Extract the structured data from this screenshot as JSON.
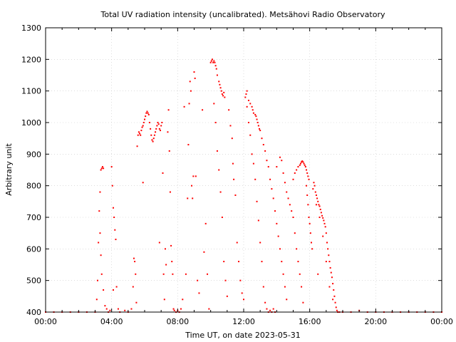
{
  "chart_data": {
    "type": "scatter",
    "title": "Total UV radiation intensity (uncalibrated). Metsähovi Radio Observatory",
    "xlabel": "Time UT, on date 2023-05-31",
    "ylabel": "Arbitrary unit",
    "xlim": [
      0,
      24
    ],
    "ylim": [
      400,
      1300
    ],
    "x_ticks": [
      {
        "value": 0,
        "label": "00:00"
      },
      {
        "value": 4,
        "label": "04:00"
      },
      {
        "value": 8,
        "label": "08:00"
      },
      {
        "value": 12,
        "label": "12:00"
      },
      {
        "value": 16,
        "label": "16:00"
      },
      {
        "value": 20,
        "label": "20:00"
      },
      {
        "value": 24,
        "label": "00:00"
      }
    ],
    "y_ticks": [
      400,
      500,
      600,
      700,
      800,
      900,
      1000,
      1100,
      1200,
      1300
    ],
    "grid": true,
    "marker_color": "#ff0000",
    "series": [
      {
        "points": [
          [
            0.0,
            400
          ],
          [
            0.5,
            400
          ],
          [
            1.0,
            400
          ],
          [
            1.5,
            400
          ],
          [
            2.0,
            400
          ],
          [
            2.5,
            400
          ],
          [
            3.0,
            400
          ],
          [
            3.1,
            440
          ],
          [
            3.15,
            500
          ],
          [
            3.2,
            620
          ],
          [
            3.25,
            720
          ],
          [
            3.3,
            780
          ],
          [
            3.35,
            850
          ],
          [
            3.4,
            855
          ],
          [
            3.45,
            860
          ],
          [
            3.5,
            855
          ],
          [
            3.3,
            650
          ],
          [
            3.35,
            580
          ],
          [
            3.4,
            520
          ],
          [
            3.5,
            470
          ],
          [
            3.6,
            420
          ],
          [
            3.7,
            410
          ],
          [
            3.8,
            400
          ],
          [
            3.9,
            405
          ],
          [
            4.0,
            860
          ],
          [
            4.05,
            800
          ],
          [
            4.1,
            730
          ],
          [
            4.15,
            700
          ],
          [
            4.2,
            660
          ],
          [
            4.25,
            630
          ],
          [
            4.3,
            480
          ],
          [
            4.1,
            470
          ],
          [
            4.4,
            410
          ],
          [
            4.5,
            400
          ],
          [
            4.8,
            405
          ],
          [
            5.0,
            400
          ],
          [
            5.2,
            410
          ],
          [
            5.3,
            480
          ],
          [
            5.35,
            570
          ],
          [
            5.4,
            560
          ],
          [
            5.45,
            520
          ],
          [
            5.5,
            430
          ],
          [
            5.55,
            925
          ],
          [
            5.6,
            960
          ],
          [
            5.65,
            970
          ],
          [
            5.7,
            965
          ],
          [
            5.75,
            960
          ],
          [
            5.8,
            975
          ],
          [
            5.85,
            985
          ],
          [
            5.9,
            990
          ],
          [
            5.95,
            1000
          ],
          [
            6.0,
            1010
          ],
          [
            6.05,
            1020
          ],
          [
            6.1,
            1030
          ],
          [
            6.15,
            1035
          ],
          [
            6.2,
            1030
          ],
          [
            6.25,
            1025
          ],
          [
            6.3,
            1000
          ],
          [
            6.35,
            980
          ],
          [
            6.4,
            960
          ],
          [
            6.45,
            945
          ],
          [
            6.5,
            940
          ],
          [
            6.55,
            950
          ],
          [
            6.6,
            960
          ],
          [
            6.65,
            970
          ],
          [
            6.7,
            980
          ],
          [
            6.75,
            990
          ],
          [
            6.8,
            1000
          ],
          [
            6.85,
            995
          ],
          [
            6.9,
            980
          ],
          [
            6.95,
            975
          ],
          [
            7.0,
            990
          ],
          [
            7.05,
            1000
          ],
          [
            5.9,
            810
          ],
          [
            6.9,
            620
          ],
          [
            7.1,
            840
          ],
          [
            7.15,
            520
          ],
          [
            7.2,
            440
          ],
          [
            7.25,
            600
          ],
          [
            7.3,
            550
          ],
          [
            7.4,
            970
          ],
          [
            7.45,
            1040
          ],
          [
            7.5,
            910
          ],
          [
            7.55,
            780
          ],
          [
            7.6,
            610
          ],
          [
            7.65,
            560
          ],
          [
            7.7,
            520
          ],
          [
            7.75,
            410
          ],
          [
            7.8,
            405
          ],
          [
            7.9,
            400
          ],
          [
            8.0,
            405
          ],
          [
            8.1,
            400
          ],
          [
            8.2,
            410
          ],
          [
            8.3,
            440
          ],
          [
            8.4,
            1050
          ],
          [
            8.5,
            520
          ],
          [
            8.6,
            760
          ],
          [
            8.65,
            930
          ],
          [
            8.7,
            1060
          ],
          [
            8.75,
            1130
          ],
          [
            8.8,
            1100
          ],
          [
            8.85,
            800
          ],
          [
            8.9,
            760
          ],
          [
            8.95,
            830
          ],
          [
            9.0,
            1160
          ],
          [
            9.05,
            1140
          ],
          [
            9.1,
            830
          ],
          [
            9.2,
            500
          ],
          [
            9.3,
            460
          ],
          [
            9.5,
            1040
          ],
          [
            9.6,
            590
          ],
          [
            9.7,
            680
          ],
          [
            9.8,
            520
          ],
          [
            9.9,
            410
          ],
          [
            10.0,
            1190
          ],
          [
            10.05,
            1195
          ],
          [
            10.1,
            1200
          ],
          [
            10.15,
            1190
          ],
          [
            10.2,
            1195
          ],
          [
            10.25,
            1190
          ],
          [
            10.3,
            1180
          ],
          [
            10.35,
            1170
          ],
          [
            10.4,
            1150
          ],
          [
            10.5,
            1130
          ],
          [
            10.55,
            1120
          ],
          [
            10.6,
            1110
          ],
          [
            10.65,
            1100
          ],
          [
            10.7,
            1090
          ],
          [
            10.75,
            1085
          ],
          [
            10.8,
            1095
          ],
          [
            10.85,
            1080
          ],
          [
            10.2,
            1060
          ],
          [
            10.3,
            1000
          ],
          [
            10.4,
            910
          ],
          [
            10.5,
            850
          ],
          [
            10.6,
            780
          ],
          [
            10.7,
            700
          ],
          [
            10.8,
            560
          ],
          [
            10.9,
            500
          ],
          [
            11.0,
            450
          ],
          [
            11.1,
            1040
          ],
          [
            11.2,
            990
          ],
          [
            11.3,
            950
          ],
          [
            11.35,
            870
          ],
          [
            11.4,
            820
          ],
          [
            11.5,
            770
          ],
          [
            11.6,
            620
          ],
          [
            11.7,
            560
          ],
          [
            11.8,
            500
          ],
          [
            11.9,
            460
          ],
          [
            12.0,
            440
          ],
          [
            12.1,
            1080
          ],
          [
            12.15,
            1090
          ],
          [
            12.2,
            1100
          ],
          [
            12.3,
            1070
          ],
          [
            12.4,
            1060
          ],
          [
            12.5,
            1050
          ],
          [
            12.55,
            1040
          ],
          [
            12.6,
            1030
          ],
          [
            12.7,
            1025
          ],
          [
            12.75,
            1020
          ],
          [
            12.8,
            1010
          ],
          [
            12.85,
            1000
          ],
          [
            12.9,
            990
          ],
          [
            12.95,
            980
          ],
          [
            13.0,
            975
          ],
          [
            12.2,
            1050
          ],
          [
            12.3,
            1000
          ],
          [
            12.4,
            960
          ],
          [
            12.5,
            900
          ],
          [
            12.6,
            870
          ],
          [
            12.7,
            820
          ],
          [
            12.8,
            750
          ],
          [
            12.9,
            690
          ],
          [
            13.0,
            620
          ],
          [
            13.1,
            560
          ],
          [
            13.2,
            480
          ],
          [
            13.3,
            430
          ],
          [
            13.4,
            410
          ],
          [
            13.5,
            400
          ],
          [
            13.6,
            405
          ],
          [
            13.7,
            400
          ],
          [
            13.8,
            410
          ],
          [
            13.9,
            400
          ],
          [
            13.1,
            950
          ],
          [
            13.2,
            930
          ],
          [
            13.3,
            910
          ],
          [
            13.4,
            880
          ],
          [
            13.5,
            860
          ],
          [
            13.6,
            820
          ],
          [
            13.7,
            790
          ],
          [
            13.8,
            760
          ],
          [
            13.9,
            720
          ],
          [
            14.0,
            680
          ],
          [
            14.1,
            640
          ],
          [
            14.2,
            600
          ],
          [
            14.3,
            560
          ],
          [
            14.4,
            520
          ],
          [
            14.5,
            480
          ],
          [
            14.6,
            440
          ],
          [
            14.0,
            860
          ],
          [
            14.2,
            890
          ],
          [
            14.3,
            880
          ],
          [
            14.4,
            840
          ],
          [
            14.5,
            810
          ],
          [
            14.6,
            780
          ],
          [
            14.7,
            760
          ],
          [
            14.8,
            740
          ],
          [
            14.9,
            720
          ],
          [
            15.0,
            700
          ],
          [
            15.1,
            650
          ],
          [
            15.2,
            600
          ],
          [
            15.3,
            560
          ],
          [
            15.4,
            520
          ],
          [
            15.5,
            480
          ],
          [
            15.6,
            430
          ],
          [
            15.0,
            820
          ],
          [
            15.1,
            840
          ],
          [
            15.2,
            850
          ],
          [
            15.3,
            860
          ],
          [
            15.4,
            865
          ],
          [
            15.45,
            870
          ],
          [
            15.5,
            875
          ],
          [
            15.55,
            878
          ],
          [
            15.6,
            875
          ],
          [
            15.65,
            870
          ],
          [
            15.7,
            865
          ],
          [
            15.75,
            860
          ],
          [
            15.8,
            850
          ],
          [
            15.85,
            840
          ],
          [
            15.9,
            830
          ],
          [
            15.95,
            820
          ],
          [
            15.8,
            800
          ],
          [
            15.85,
            770
          ],
          [
            15.9,
            740
          ],
          [
            15.95,
            700
          ],
          [
            16.0,
            680
          ],
          [
            16.05,
            650
          ],
          [
            16.1,
            620
          ],
          [
            16.15,
            600
          ],
          [
            16.2,
            790
          ],
          [
            16.25,
            810
          ],
          [
            16.3,
            800
          ],
          [
            16.35,
            780
          ],
          [
            16.4,
            770
          ],
          [
            16.45,
            760
          ],
          [
            16.5,
            750
          ],
          [
            16.55,
            740
          ],
          [
            16.6,
            735
          ],
          [
            16.65,
            725
          ],
          [
            16.7,
            715
          ],
          [
            16.75,
            705
          ],
          [
            16.8,
            698
          ],
          [
            16.85,
            690
          ],
          [
            16.9,
            680
          ],
          [
            16.95,
            670
          ],
          [
            17.0,
            650
          ],
          [
            17.05,
            620
          ],
          [
            17.1,
            600
          ],
          [
            17.15,
            580
          ],
          [
            17.2,
            560
          ],
          [
            17.25,
            540
          ],
          [
            17.3,
            525
          ],
          [
            17.35,
            510
          ],
          [
            17.4,
            490
          ],
          [
            17.45,
            470
          ],
          [
            17.5,
            450
          ],
          [
            17.55,
            430
          ],
          [
            17.6,
            415
          ],
          [
            17.65,
            405
          ],
          [
            17.7,
            400
          ],
          [
            16.4,
            740
          ],
          [
            16.6,
            700
          ],
          [
            16.8,
            640
          ],
          [
            17.0,
            560
          ],
          [
            16.5,
            520
          ],
          [
            17.2,
            480
          ],
          [
            17.4,
            440
          ],
          [
            17.8,
            400
          ],
          [
            18.0,
            400
          ],
          [
            18.5,
            400
          ],
          [
            19.0,
            405
          ],
          [
            19.5,
            400
          ],
          [
            20.0,
            400
          ],
          [
            20.5,
            400
          ],
          [
            21.0,
            400
          ],
          [
            21.5,
            400
          ],
          [
            22.0,
            400
          ],
          [
            22.5,
            400
          ],
          [
            23.0,
            400
          ],
          [
            23.5,
            400
          ],
          [
            24.0,
            400
          ]
        ]
      }
    ]
  }
}
